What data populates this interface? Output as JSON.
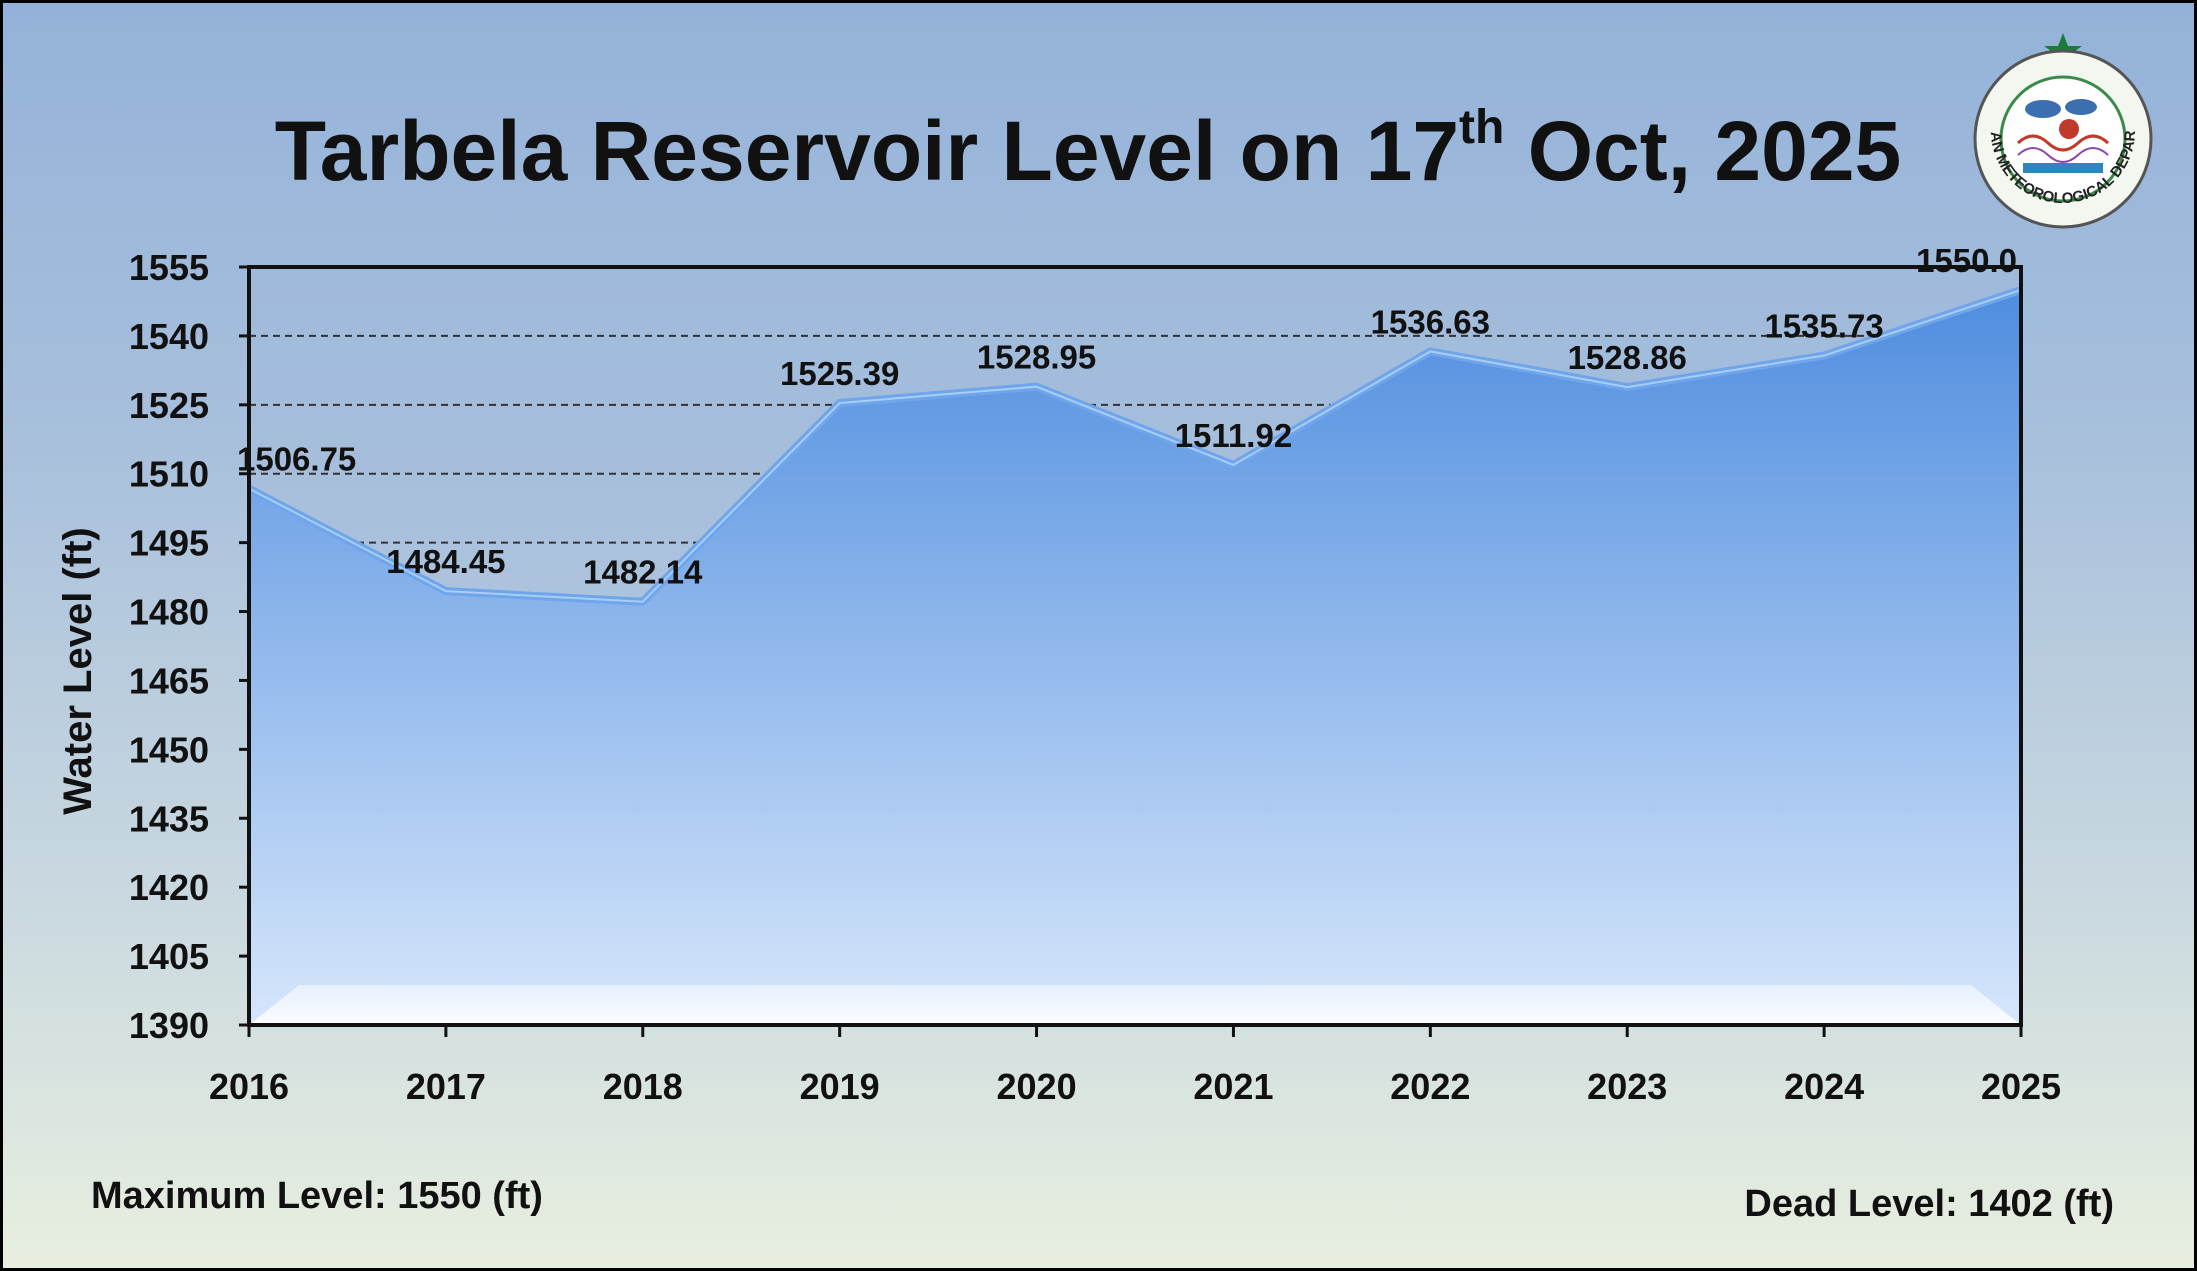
{
  "title": {
    "main": "Tarbela Reservoir Level on 17",
    "sup": "th",
    "tail": " Oct, 2025"
  },
  "logo": {
    "icon": "pmd-seal-icon",
    "text": "PAKISTAN METEOROLOGICAL DEPARTMENT"
  },
  "footer": {
    "max_level": "Maximum Level: 1550 (ft)",
    "dead_level": "Dead Level: 1402 (ft)"
  },
  "colors": {
    "area_top": "#4f8ddf",
    "area_bottom": "#d6e6fb",
    "line": "#6fa5ea",
    "grid": "#333333"
  },
  "chart_data": {
    "type": "area",
    "title": "Tarbela Reservoir Level on 17th Oct, 2025",
    "xlabel": "",
    "ylabel": "Water Level (ft)",
    "categories": [
      "2016",
      "2017",
      "2018",
      "2019",
      "2020",
      "2021",
      "2022",
      "2023",
      "2024",
      "2025"
    ],
    "values": [
      1506.75,
      1484.45,
      1482.14,
      1525.39,
      1528.95,
      1511.92,
      1536.63,
      1528.86,
      1535.73,
      1550.0
    ],
    "data_labels": [
      "1506.75",
      "1484.45",
      "1482.14",
      "1525.39",
      "1528.95",
      "1511.92",
      "1536.63",
      "1528.86",
      "1535.73",
      "1550.0"
    ],
    "ylim": [
      1390,
      1555
    ],
    "yticks": [
      1390,
      1405,
      1420,
      1435,
      1450,
      1465,
      1480,
      1495,
      1510,
      1525,
      1540,
      1555
    ],
    "grid": "horizontal dashed",
    "legend": "none"
  }
}
